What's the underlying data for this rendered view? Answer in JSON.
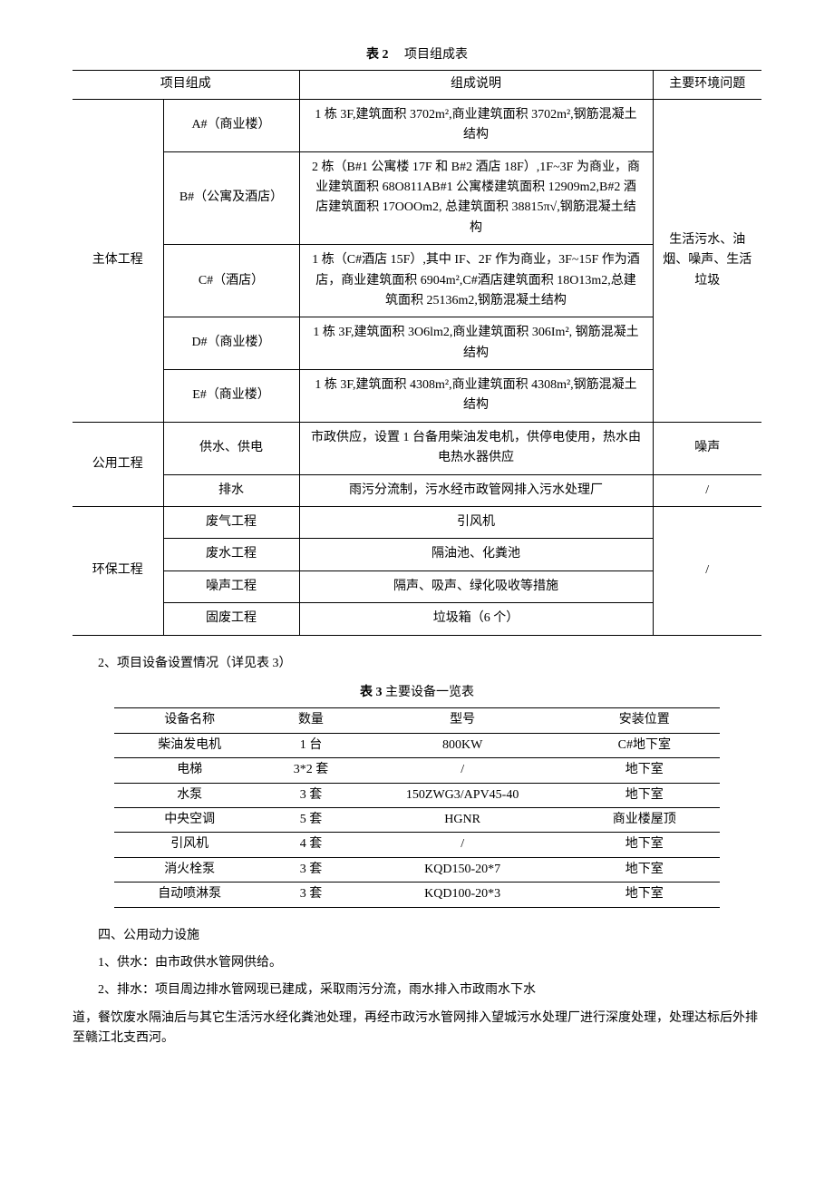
{
  "table2": {
    "caption_prefix": "表 2",
    "caption": "项目组成表",
    "headers": [
      "项目组成",
      "组成说明",
      "主要环境问题"
    ],
    "groups": [
      {
        "name": "主体工程",
        "env": "生活污水、油烟、噪声、生活垃圾",
        "rows": [
          {
            "sub": "A#（商业楼）",
            "desc": "1 栋 3F,建筑面积 3702m²,商业建筑面积 3702m²,钢筋混凝土结构"
          },
          {
            "sub": "B#（公寓及酒店）",
            "desc": "2 栋（B#1 公寓楼 17F 和 B#2 酒店 18F）,1F~3F 为商业，商业建筑面积 68O811AB#1 公寓楼建筑面积 12909m2,B#2 酒店建筑面积 17OOOm2, 总建筑面积 38815π√,钢筋混凝土结构"
          },
          {
            "sub": "C#（酒店）",
            "desc": "1 栋（C#酒店 15F）,其中 IF、2F 作为商业，3F~15F 作为酒店，商业建筑面积 6904m²,C#酒店建筑面积 18O13m2,总建筑面积 25136m2,钢筋混凝土结构"
          },
          {
            "sub": "D#（商业楼）",
            "desc": "1 栋 3F,建筑面积 3O6lm2,商业建筑面积 306Im², 钢筋混凝土结构"
          },
          {
            "sub": "E#（商业楼）",
            "desc": "1 栋 3F,建筑面积 4308m²,商业建筑面积 4308m²,钢筋混凝土结构"
          }
        ]
      },
      {
        "name": "公用工程",
        "rows": [
          {
            "sub": "供水、供电",
            "desc": "市政供应，设置 1 台备用柴油发电机，供停电使用，热水由电热水器供应",
            "env": "噪声"
          },
          {
            "sub": "排水",
            "desc": "雨污分流制，污水经市政管网排入污水处理厂",
            "env": "/"
          }
        ]
      },
      {
        "name": "环保工程",
        "env": "/",
        "rows": [
          {
            "sub": "废气工程",
            "desc": "引风机"
          },
          {
            "sub": "废水工程",
            "desc": "隔油池、化粪池"
          },
          {
            "sub": "噪声工程",
            "desc": "隔声、吸声、绿化吸收等措施"
          },
          {
            "sub": "固废工程",
            "desc": "垃圾箱（6 个）"
          }
        ]
      }
    ]
  },
  "section2": "2、项目设备设置情况（详见表 3）",
  "table3": {
    "caption_prefix": "表 3",
    "caption": "主要设备一览表",
    "headers": [
      "设备名称",
      "数量",
      "型号",
      "安装位置"
    ],
    "rows": [
      [
        "柴油发电机",
        "1 台",
        "800KW",
        "C#地下室"
      ],
      [
        "电梯",
        "3*2 套",
        "/",
        "地下室"
      ],
      [
        "水泵",
        "3 套",
        "150ZWG3/APV45-40",
        "地下室"
      ],
      [
        "中央空调",
        "5 套",
        "HGNR",
        "商业楼屋顶"
      ],
      [
        "引风机",
        "4 套",
        "/",
        "地下室"
      ],
      [
        "消火栓泵",
        "3 套",
        "KQD150-20*7",
        "地下室"
      ],
      [
        "自动喷淋泵",
        "3 套",
        "KQD100-20*3",
        "地下室"
      ]
    ]
  },
  "section4": {
    "title": "四、公用动力设施",
    "p1": "1、供水：由市政供水管网供给。",
    "p2": "2、排水：项目周边排水管网现已建成，采取雨污分流，雨水排入市政雨水下水",
    "p3": "道，餐饮废水隔油后与其它生活污水经化粪池处理，再经市政污水管网排入望城污水处理厂进行深度处理，处理达标后外排至赣江北支西河。"
  }
}
